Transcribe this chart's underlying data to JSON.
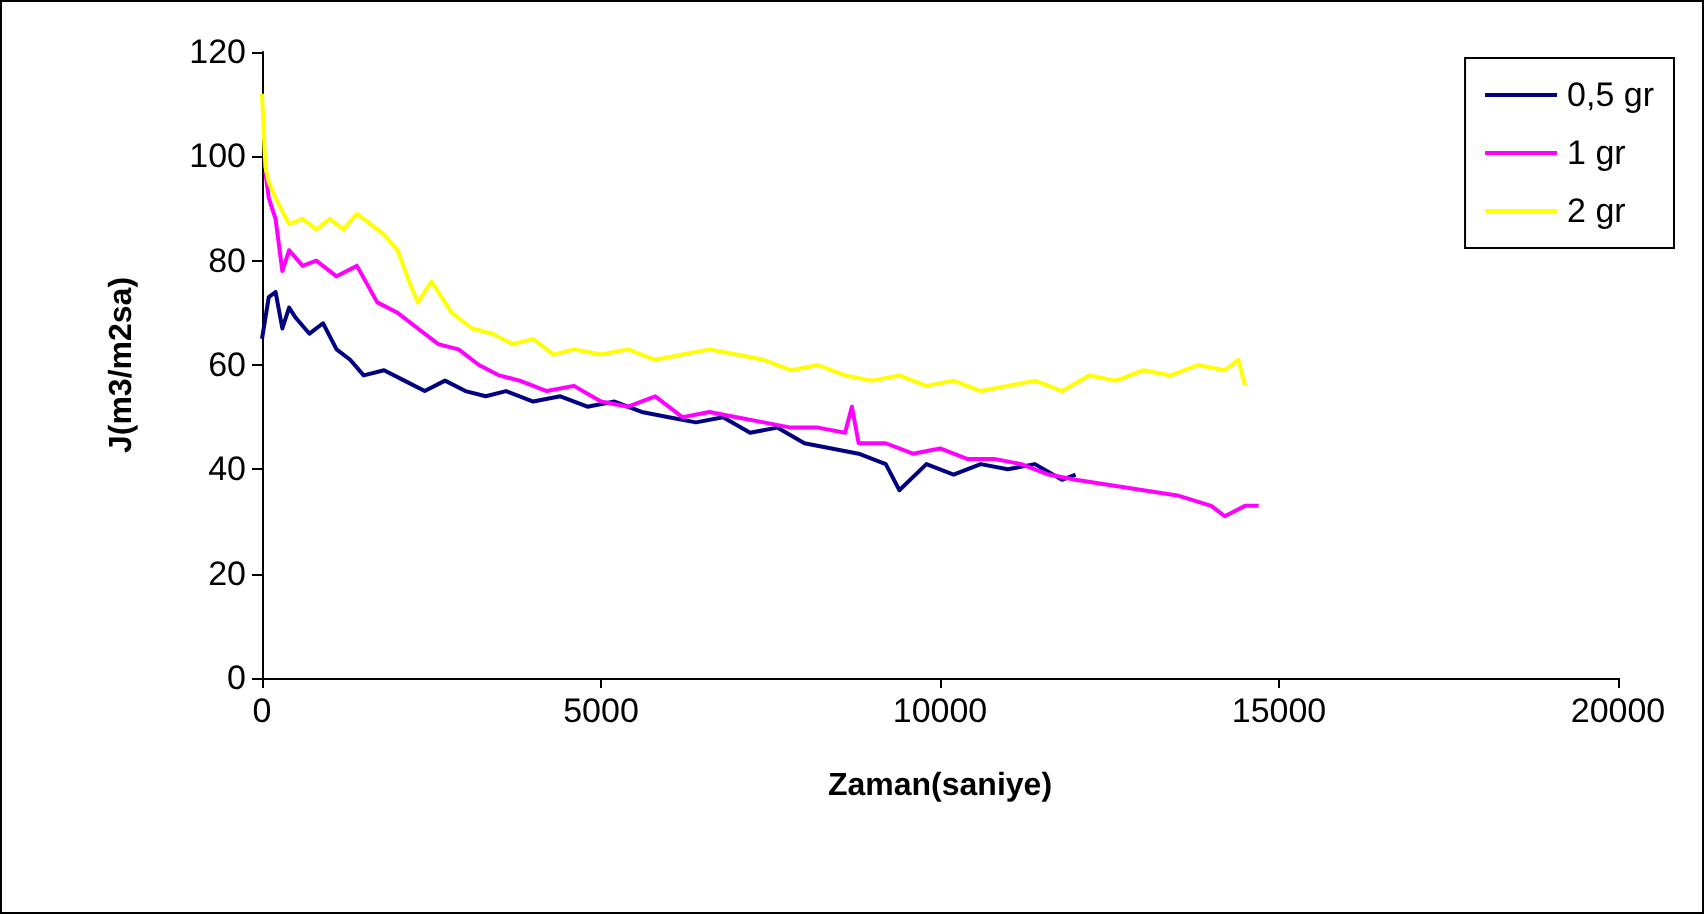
{
  "chart_data": {
    "type": "line",
    "xlabel": "Zaman(saniye)",
    "ylabel": "J(m3/m2sa)",
    "xlim": [
      0,
      20000
    ],
    "xticks": [
      0,
      5000,
      10000,
      15000,
      20000
    ],
    "ylim": [
      0,
      120
    ],
    "yticks": [
      0,
      20,
      40,
      60,
      80,
      100,
      120
    ],
    "grid": false,
    "legend": "top right",
    "marker": "none",
    "line_style": "solid",
    "series": [
      {
        "name": "0,5 gr",
        "color": "#000080",
        "x": [
          0,
          100,
          200,
          300,
          400,
          500,
          700,
          900,
          1100,
          1300,
          1500,
          1800,
          2100,
          2400,
          2700,
          3000,
          3300,
          3600,
          4000,
          4400,
          4800,
          5200,
          5600,
          6000,
          6400,
          6800,
          7200,
          7600,
          8000,
          8400,
          8800,
          9200,
          9400,
          9800,
          10200,
          10600,
          11000,
          11400,
          11800,
          12000
        ],
        "values": [
          65,
          73,
          74,
          67,
          71,
          69,
          66,
          68,
          63,
          61,
          58,
          59,
          57,
          55,
          57,
          55,
          54,
          55,
          53,
          54,
          52,
          53,
          51,
          50,
          49,
          50,
          47,
          48,
          45,
          44,
          43,
          41,
          36,
          41,
          39,
          41,
          40,
          41,
          38,
          39
        ]
      },
      {
        "name": "1 gr",
        "color": "#ff00ff",
        "x": [
          50,
          100,
          200,
          300,
          400,
          600,
          800,
          1100,
          1400,
          1700,
          2000,
          2300,
          2600,
          2900,
          3200,
          3500,
          3800,
          4200,
          4600,
          5000,
          5400,
          5800,
          6200,
          6600,
          7000,
          7400,
          7800,
          8200,
          8600,
          8700,
          8800,
          9200,
          9600,
          10000,
          10400,
          10800,
          11200,
          11600,
          12000,
          12500,
          13000,
          13500,
          14000,
          14200,
          14500,
          14700
        ],
        "values": [
          97,
          92,
          88,
          78,
          82,
          79,
          80,
          77,
          79,
          72,
          70,
          67,
          64,
          63,
          60,
          58,
          57,
          55,
          56,
          53,
          52,
          54,
          50,
          51,
          50,
          49,
          48,
          48,
          47,
          52,
          45,
          45,
          43,
          44,
          42,
          42,
          41,
          39,
          38,
          37,
          36,
          35,
          33,
          31,
          33,
          33
        ]
      },
      {
        "name": "2 gr",
        "color": "#ffff00",
        "x": [
          0,
          50,
          100,
          200,
          400,
          600,
          800,
          1000,
          1200,
          1400,
          1600,
          1800,
          2000,
          2200,
          2300,
          2500,
          2800,
          3100,
          3400,
          3700,
          4000,
          4300,
          4600,
          5000,
          5400,
          5800,
          6200,
          6600,
          7000,
          7400,
          7800,
          8200,
          8600,
          9000,
          9400,
          9800,
          10200,
          10600,
          11000,
          11400,
          11800,
          12200,
          12600,
          13000,
          13400,
          13800,
          14200,
          14400,
          14500
        ],
        "values": [
          112,
          98,
          95,
          92,
          87,
          88,
          86,
          88,
          86,
          89,
          87,
          85,
          82,
          75,
          72,
          76,
          70,
          67,
          66,
          64,
          65,
          62,
          63,
          62,
          63,
          61,
          62,
          63,
          62,
          61,
          59,
          60,
          58,
          57,
          58,
          56,
          57,
          55,
          56,
          57,
          55,
          58,
          57,
          59,
          58,
          60,
          59,
          61,
          56
        ]
      }
    ]
  }
}
